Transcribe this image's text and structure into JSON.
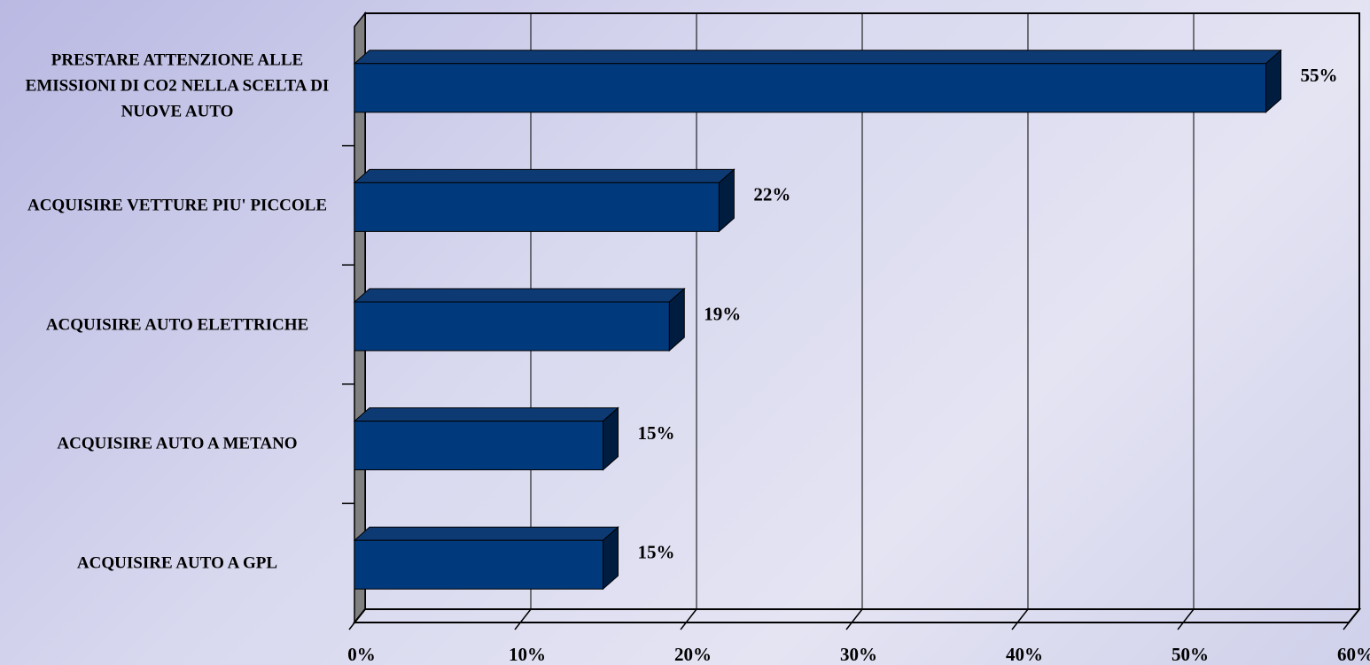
{
  "chart_data": {
    "type": "hbar3d",
    "categories": [
      "PRESTARE ATTENZIONE ALLE EMISSIONI DI CO2 NELLA SCELTA DI NUOVE AUTO",
      "ACQUISIRE VETTURE PIU' PICCOLE",
      "ACQUISIRE AUTO ELETTRICHE",
      "ACQUISIRE AUTO A METANO",
      "ACQUISIRE AUTO A GPL"
    ],
    "values": [
      55,
      22,
      19,
      15,
      15
    ],
    "value_labels": [
      "55%",
      "22%",
      "19%",
      "15%",
      "15%"
    ],
    "color": "#003a7d",
    "xlim": [
      0,
      60
    ],
    "xticks": [
      {
        "value": 0,
        "label": "0%"
      },
      {
        "value": 10,
        "label": "10%"
      },
      {
        "value": 20,
        "label": "20%"
      },
      {
        "value": 30,
        "label": "30%"
      },
      {
        "value": 40,
        "label": "40%"
      },
      {
        "value": 50,
        "label": "50%"
      },
      {
        "value": 60,
        "label": "60%"
      }
    ],
    "grid": true
  }
}
